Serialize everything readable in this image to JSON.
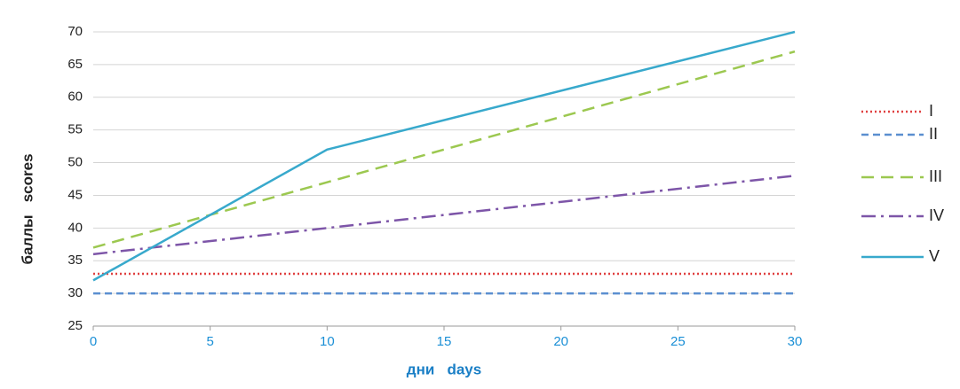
{
  "chart_data": {
    "type": "line",
    "x_label": "дни   days",
    "y_label": "баллы   scores",
    "x": [
      0,
      10,
      30
    ],
    "series": [
      {
        "name": "I",
        "color": "#e04040",
        "line_style": "dotted",
        "values": [
          33,
          33,
          33
        ]
      },
      {
        "name": "II",
        "color": "#5b8fd0",
        "line_style": "dashed",
        "values": [
          30,
          30,
          30
        ]
      },
      {
        "name": "III",
        "color": "#9cc850",
        "line_style": "long-dashed",
        "values": [
          37,
          47,
          67
        ]
      },
      {
        "name": "IV",
        "color": "#7d55a8",
        "line_style": "dash-dot",
        "values": [
          36,
          40,
          48
        ]
      },
      {
        "name": "V",
        "color": "#38a9cc",
        "line_style": "solid",
        "values": [
          32,
          52,
          70
        ]
      }
    ],
    "xlim": [
      0,
      30
    ],
    "xticks": [
      0,
      5,
      10,
      15,
      20,
      25,
      30
    ],
    "ylim": [
      25,
      70
    ],
    "yticks": [
      25,
      30,
      35,
      40,
      45,
      50,
      55,
      60,
      65,
      70
    ],
    "grid": true,
    "legend": "right"
  }
}
